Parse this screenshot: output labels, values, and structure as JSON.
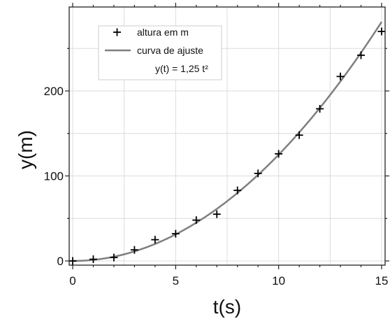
{
  "chart_data": {
    "type": "scatter",
    "title": "",
    "xlabel": "t(s)",
    "ylabel": "y(m)",
    "xlim": [
      0,
      15
    ],
    "ylim": [
      -5,
      295
    ],
    "xticks": [
      0,
      5,
      10,
      15
    ],
    "xtick_labels": [
      "0",
      "5",
      "10",
      "15"
    ],
    "yticks": [
      0,
      100,
      200
    ],
    "ytick_labels": [
      "0",
      "100",
      "200"
    ],
    "grid": true,
    "legend_position": "top-left",
    "series": [
      {
        "name": "altura em m",
        "kind": "scatter",
        "marker": "plus",
        "color": "#000000",
        "x": [
          0,
          1,
          2,
          3,
          4,
          5,
          6,
          7,
          8,
          9,
          10,
          11,
          12,
          13,
          14,
          15
        ],
        "y": [
          0,
          2,
          4,
          13,
          25,
          32,
          48,
          55,
          83,
          103,
          126,
          148,
          179,
          217,
          242,
          270
        ]
      },
      {
        "name": "curva de ajuste",
        "kind": "line",
        "color": "#7f7f7f",
        "equation_label": "y(t) = 1,25 t²",
        "coefficient": 1.25,
        "exponent": 2
      }
    ]
  }
}
